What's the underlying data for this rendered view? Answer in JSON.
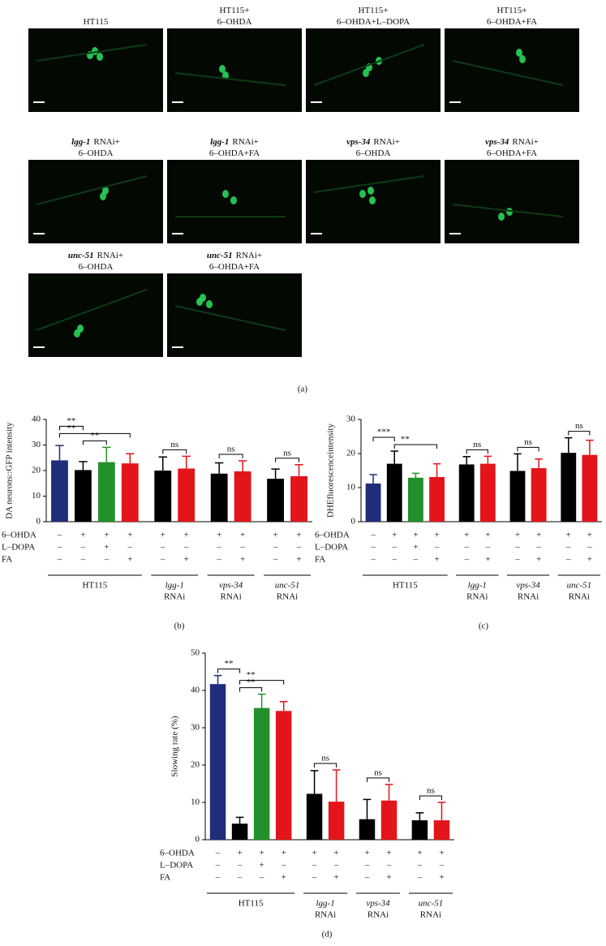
{
  "figure": {
    "images": {
      "panel_label": "(a)",
      "panels": [
        {
          "lines": [
            "HT115"
          ]
        },
        {
          "lines": [
            "HT115+",
            "6–OHDA"
          ]
        },
        {
          "lines": [
            "HT115+",
            "6–OHDA+L–DOPA"
          ]
        },
        {
          "lines": [
            "HT115+",
            "6–OHDA+FA"
          ]
        },
        {
          "gene": "lgg-1",
          "lines": [
            "RNAi+",
            "6–OHDA"
          ]
        },
        {
          "gene": "lgg-1",
          "lines": [
            "RNAi+",
            "6–OHDA+FA"
          ]
        },
        {
          "gene": "vps-34",
          "lines": [
            "RNAi+",
            "6–OHDA"
          ]
        },
        {
          "gene": "vps-34",
          "lines": [
            "RNAi+",
            "6–OHDA+FA"
          ]
        },
        {
          "gene": "unc-51",
          "lines": [
            "RNAi+",
            "6–OHDA"
          ]
        },
        {
          "gene": "unc-51",
          "lines": [
            "RNAi+",
            "6–OHDA+FA"
          ]
        }
      ]
    }
  },
  "chart_data": [
    {
      "type": "bar",
      "panel_label": "(b)",
      "y_label": "DA neurons::GFP intensity",
      "ylim": [
        0,
        40
      ],
      "yticks": [
        0,
        10,
        20,
        30,
        40
      ],
      "values": [
        24,
        20.2,
        23.3,
        22.8,
        20,
        20.8,
        18.8,
        19.7,
        16.8,
        17.8
      ],
      "errors": [
        5.8,
        3.3,
        5.8,
        3.8,
        5.3,
        4.8,
        4.2,
        4.1,
        3.8,
        4.5
      ],
      "colors": [
        "#1f2d7b",
        "#000000",
        "#23912b",
        "#e3151a",
        "#000000",
        "#e3151a",
        "#000000",
        "#e3151a",
        "#000000",
        "#e3151a"
      ],
      "treatments": [
        {
          "label": "6–OHDA",
          "marks": [
            "–",
            "+",
            "+",
            "+",
            "+",
            "+",
            "+",
            "+",
            "+",
            "+"
          ]
        },
        {
          "label": "L–DOPA",
          "marks": [
            "–",
            "–",
            "+",
            "–",
            "–",
            "–",
            "–",
            "–",
            "–",
            "–"
          ]
        },
        {
          "label": "FA",
          "marks": [
            "–",
            "–",
            "–",
            "+",
            "–",
            "+",
            "–",
            "+",
            "–",
            "+"
          ]
        }
      ],
      "groups": [
        {
          "label": "HT115",
          "bars": [
            0,
            3
          ]
        },
        {
          "gene": "lgg-1",
          "label": "RNAi",
          "bars": [
            4,
            5
          ]
        },
        {
          "gene": "vps-34",
          "label": "RNAi",
          "bars": [
            6,
            7
          ]
        },
        {
          "gene": "unc-51",
          "label": "RNAi",
          "bars": [
            8,
            9
          ]
        }
      ],
      "comparisons": [
        {
          "bars": [
            1,
            2
          ],
          "label": "**"
        },
        {
          "bars": [
            0,
            3
          ],
          "label": "**"
        },
        {
          "bars": [
            0,
            1
          ],
          "label": "**"
        },
        {
          "bars": [
            4,
            5
          ],
          "label": "ns"
        },
        {
          "bars": [
            6,
            7
          ],
          "label": "ns"
        },
        {
          "bars": [
            8,
            9
          ],
          "label": "ns"
        }
      ]
    },
    {
      "type": "bar",
      "panel_label": "(c)",
      "y_label": "DHEfluorescenceintensity",
      "ylim": [
        0,
        30
      ],
      "yticks": [
        0,
        10,
        20,
        30
      ],
      "values": [
        11.2,
        17,
        12.9,
        13.1,
        16.8,
        17,
        14.9,
        15.7,
        20.2,
        19.6
      ],
      "errors": [
        2.6,
        3.7,
        1.3,
        3.9,
        2.3,
        2.2,
        5,
        2.7,
        4.4,
        4.3
      ],
      "colors": [
        "#1f2d7b",
        "#000000",
        "#23912b",
        "#e3151a",
        "#000000",
        "#e3151a",
        "#000000",
        "#e3151a",
        "#000000",
        "#e3151a"
      ],
      "treatments": [
        {
          "label": "6–OHDA",
          "marks": [
            "–",
            "+",
            "+",
            "+",
            "+",
            "+",
            "+",
            "+",
            "+",
            "+"
          ]
        },
        {
          "label": "L–DOPA",
          "marks": [
            "–",
            "–",
            "+",
            "–",
            "–",
            "–",
            "–",
            "–",
            "–",
            "–"
          ]
        },
        {
          "label": "FA",
          "marks": [
            "–",
            "–",
            "–",
            "+",
            "–",
            "+",
            "–",
            "+",
            "–",
            "+"
          ]
        }
      ],
      "groups": [
        {
          "label": "HT115",
          "bars": [
            0,
            3
          ]
        },
        {
          "gene": "lgg-1",
          "label": "RNAi",
          "bars": [
            4,
            5
          ]
        },
        {
          "gene": "vps-34",
          "label": "RNAi",
          "bars": [
            6,
            7
          ]
        },
        {
          "gene": "unc-51",
          "label": "RNAi",
          "bars": [
            8,
            9
          ]
        }
      ],
      "comparisons": [
        {
          "bars": [
            1,
            3
          ],
          "label": "**"
        },
        {
          "bars": [
            0,
            1
          ],
          "label": "***"
        },
        {
          "bars": [
            4,
            5
          ],
          "label": "ns"
        },
        {
          "bars": [
            6,
            7
          ],
          "label": "ns"
        },
        {
          "bars": [
            8,
            9
          ],
          "label": "ns"
        }
      ]
    },
    {
      "type": "bar",
      "panel_label": "(d)",
      "y_label": "Slowing rate (%)",
      "ylim": [
        0,
        50
      ],
      "yticks": [
        0,
        10,
        20,
        30,
        40,
        50
      ],
      "values": [
        41.7,
        4.3,
        35.3,
        34.5,
        12.3,
        10.2,
        5.5,
        10.5,
        5.2,
        5.2
      ],
      "errors": [
        2.3,
        1.7,
        3.7,
        2.5,
        6.2,
        8.5,
        5.3,
        4.3,
        2,
        4.8
      ],
      "colors": [
        "#1f2d7b",
        "#000000",
        "#23912b",
        "#e3151a",
        "#000000",
        "#e3151a",
        "#000000",
        "#e3151a",
        "#000000",
        "#e3151a"
      ],
      "treatments": [
        {
          "label": "6–OHDA",
          "marks": [
            "–",
            "+",
            "+",
            "+",
            "+",
            "+",
            "+",
            "+",
            "+",
            "+"
          ]
        },
        {
          "label": "L–DOPA",
          "marks": [
            "–",
            "–",
            "+",
            "–",
            "–",
            "–",
            "–",
            "–",
            "–",
            "–"
          ]
        },
        {
          "label": "FA",
          "marks": [
            "–",
            "–",
            "–",
            "+",
            "–",
            "+",
            "–",
            "+",
            "–",
            "+"
          ]
        }
      ],
      "groups": [
        {
          "label": "HT115",
          "bars": [
            0,
            3
          ]
        },
        {
          "gene": "lgg-1",
          "label": "RNAi",
          "bars": [
            4,
            5
          ]
        },
        {
          "gene": "vps-34",
          "label": "RNAi",
          "bars": [
            6,
            7
          ]
        },
        {
          "gene": "unc-51",
          "label": "RNAi",
          "bars": [
            8,
            9
          ]
        }
      ],
      "comparisons": [
        {
          "bars": [
            1,
            2
          ],
          "label": "**"
        },
        {
          "bars": [
            1,
            3
          ],
          "label": "**"
        },
        {
          "bars": [
            0,
            1
          ],
          "label": "**"
        },
        {
          "bars": [
            4,
            5
          ],
          "label": "ns"
        },
        {
          "bars": [
            6,
            7
          ],
          "label": "ns"
        },
        {
          "bars": [
            8,
            9
          ],
          "label": "ns"
        }
      ]
    }
  ]
}
